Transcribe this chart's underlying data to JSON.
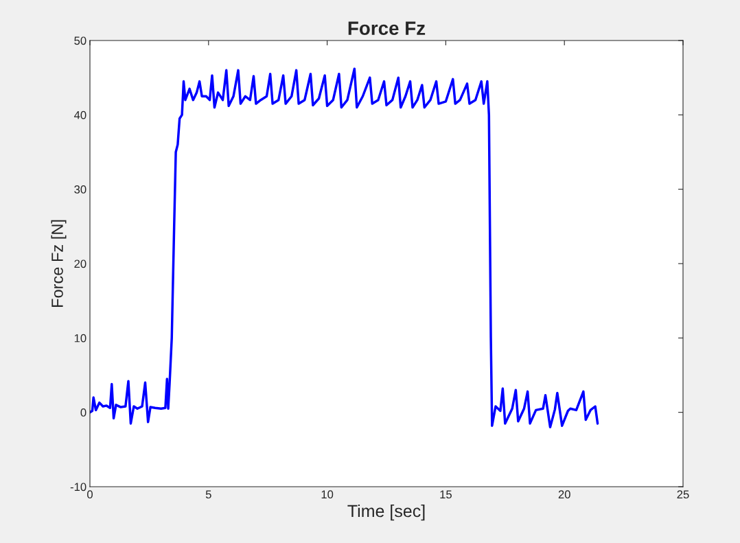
{
  "chart_data": {
    "type": "line",
    "title": "Force Fz",
    "xlabel": "Time [sec]",
    "ylabel": "Force Fz [N]",
    "xlim": [
      0,
      25
    ],
    "xticks": [
      0,
      5,
      10,
      15,
      20,
      25
    ],
    "ylim": [
      -10,
      50
    ],
    "yticks": [
      -10,
      0,
      10,
      20,
      30,
      40,
      50
    ],
    "grid": false,
    "legend": false,
    "marker": "none",
    "line_style": "solid",
    "series": [
      {
        "color": "#0000ff",
        "x": [
          0,
          0.1,
          0.15,
          0.25,
          0.4,
          0.55,
          0.7,
          0.85,
          0.92,
          1.0,
          1.1,
          1.3,
          1.5,
          1.62,
          1.72,
          1.85,
          2.0,
          2.2,
          2.33,
          2.45,
          2.55,
          2.75,
          3.0,
          3.18,
          3.25,
          3.3,
          3.36,
          3.45,
          3.55,
          3.62,
          3.7,
          3.78,
          3.88,
          3.95,
          4.02,
          4.2,
          4.35,
          4.5,
          4.62,
          4.72,
          4.9,
          5.05,
          5.15,
          5.25,
          5.4,
          5.6,
          5.75,
          5.85,
          6.05,
          6.25,
          6.35,
          6.55,
          6.75,
          6.9,
          7.0,
          7.2,
          7.45,
          7.6,
          7.7,
          7.95,
          8.15,
          8.25,
          8.5,
          8.7,
          8.8,
          9.05,
          9.3,
          9.4,
          9.65,
          9.9,
          10.0,
          10.25,
          10.5,
          10.6,
          10.85,
          11.15,
          11.25,
          11.5,
          11.8,
          11.9,
          12.15,
          12.4,
          12.5,
          12.75,
          13.0,
          13.1,
          13.3,
          13.5,
          13.6,
          13.8,
          14.0,
          14.1,
          14.35,
          14.6,
          14.7,
          15.0,
          15.3,
          15.4,
          15.6,
          15.9,
          16.0,
          16.25,
          16.5,
          16.6,
          16.75,
          16.82,
          16.9,
          16.95,
          17.1,
          17.3,
          17.4,
          17.5,
          17.8,
          17.95,
          18.05,
          18.3,
          18.45,
          18.55,
          18.8,
          19.1,
          19.2,
          19.4,
          19.6,
          19.7,
          19.9,
          20.15,
          20.25,
          20.5,
          20.8,
          20.9,
          21.1,
          21.3,
          21.4
        ],
        "values": [
          0,
          0.2,
          2,
          0.3,
          1.3,
          0.8,
          0.9,
          0.6,
          3.8,
          -0.8,
          1,
          0.7,
          0.8,
          4.2,
          -1.5,
          0.8,
          0.5,
          0.8,
          4,
          -1.3,
          0.7,
          0.6,
          0.5,
          0.6,
          4.5,
          0.5,
          4,
          10,
          25,
          35,
          36,
          39.5,
          40,
          44.5,
          42,
          43.5,
          42,
          43,
          44.5,
          42.5,
          42.5,
          42,
          45.3,
          41,
          43,
          42,
          46,
          41.2,
          42.5,
          46,
          41.5,
          42.5,
          42,
          45.2,
          41.5,
          42,
          42.5,
          45.5,
          41.5,
          42,
          45.3,
          41.5,
          42.5,
          46,
          41.5,
          42,
          45.5,
          41.3,
          42.2,
          45.3,
          41.2,
          42,
          45.5,
          41,
          42,
          46.2,
          41,
          42.5,
          45,
          41.5,
          42,
          44.5,
          41.3,
          42,
          45,
          41,
          42.5,
          44.5,
          41,
          42,
          44,
          41,
          42,
          44.5,
          41.5,
          41.8,
          44.8,
          41.5,
          42,
          44.2,
          41.5,
          42,
          44.5,
          41.5,
          44.5,
          40,
          10,
          -1.8,
          0.8,
          0.2,
          3.2,
          -1.5,
          0.5,
          3,
          -1.2,
          0.5,
          2.8,
          -1.5,
          0.3,
          0.5,
          2.3,
          -2,
          0.4,
          2.6,
          -1.8,
          0.2,
          0.5,
          0.3,
          2.8,
          -1,
          0.3,
          0.8,
          -1.5
        ]
      }
    ]
  }
}
